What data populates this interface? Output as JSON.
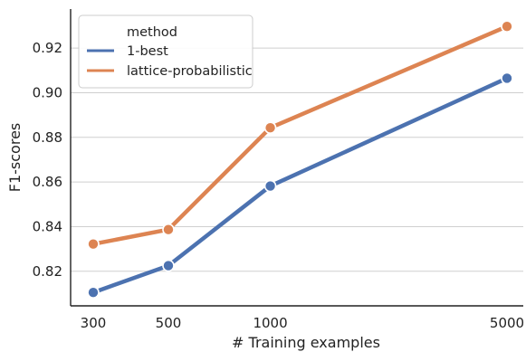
{
  "chart_data": {
    "type": "line",
    "x": [
      300,
      500,
      1000,
      5000
    ],
    "x_tick_labels": [
      "300",
      "500",
      "1000",
      "5000"
    ],
    "y_ticks": [
      0.82,
      0.84,
      0.86,
      0.88,
      0.9,
      0.92
    ],
    "y_tick_labels": [
      "0.82",
      "0.84",
      "0.86",
      "0.88",
      "0.90",
      "0.92"
    ],
    "ylim": [
      0.8045,
      0.9375
    ],
    "xlabel": "# Training examples",
    "ylabel": "F1-scores",
    "grid": "horizontal",
    "legend": {
      "title": "method",
      "placement": "top-left"
    },
    "series": [
      {
        "name": "1-best",
        "color": "#4c72b0",
        "values": [
          0.8105,
          0.8225,
          0.8582,
          0.9065
        ]
      },
      {
        "name": "lattice-probabilistic",
        "color": "#dd8452",
        "values": [
          0.8322,
          0.8387,
          0.8843,
          0.9297
        ]
      }
    ]
  }
}
